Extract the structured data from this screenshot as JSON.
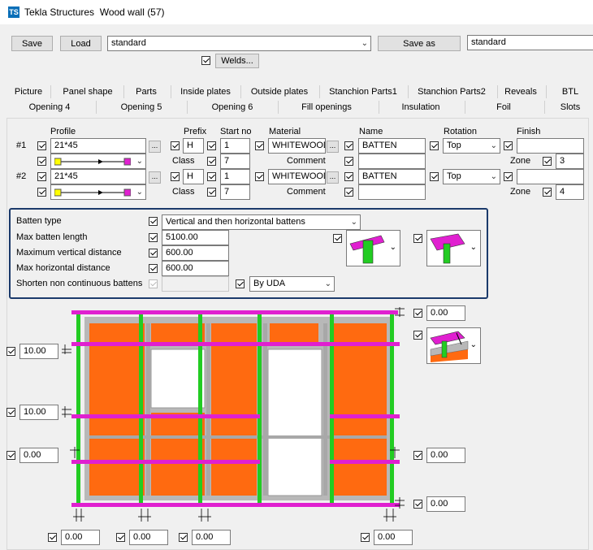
{
  "window": {
    "app": "Tekla Structures",
    "title": "Wood wall (57)"
  },
  "toolbar": {
    "save": "Save",
    "load": "Load",
    "settings": "standard",
    "save_as": "Save as",
    "save_as_name": "standard",
    "welds": "Welds..."
  },
  "tabs_row1": [
    "Picture",
    "Panel shape",
    "Parts",
    "Inside plates",
    "Outside plates",
    "Stanchion Parts1",
    "Stanchion Parts2",
    "Reveals",
    "BTL"
  ],
  "tabs_row2": [
    "Opening 4",
    "Opening 5",
    "Opening 6",
    "Fill openings",
    "Insulation",
    "Foil",
    "Slots"
  ],
  "headers": {
    "profile": "Profile",
    "prefix": "Prefix",
    "start_no": "Start no",
    "material": "Material",
    "name": "Name",
    "rotation": "Rotation",
    "finish": "Finish",
    "class": "Class",
    "comment": "Comment",
    "zone": "Zone"
  },
  "rows": [
    {
      "id": "#1",
      "profile": "21*45",
      "prefix": "H",
      "start_no": "1",
      "class": "7",
      "material": "WHITEWOOD",
      "name": "BATTEN",
      "rotation": "Top",
      "finish": "",
      "zone": "3"
    },
    {
      "id": "#2",
      "profile": "21*45",
      "prefix": "H",
      "start_no": "1",
      "class": "7",
      "material": "WHITEWOOD",
      "name": "BATTEN",
      "rotation": "Top",
      "finish": "",
      "zone": "4"
    }
  ],
  "batten": {
    "type_label": "Batten type",
    "type_value": "Vertical and then horizontal battens",
    "max_length_label": "Max batten length",
    "max_length": "5100.00",
    "max_vert_label": "Maximum vertical distance",
    "max_vert": "600.00",
    "max_horiz_label": "Max horizontal distance",
    "max_horiz": "600.00",
    "shorten_label": "Shorten non continuous battens",
    "uda": "By UDA"
  },
  "dims": {
    "top_right": "0.00",
    "left_upper": "10.00",
    "left_middle": "10.00",
    "left_lower": "0.00",
    "right_middle": "0.00",
    "bottom_right": "0.00",
    "bottom_1": "0.00",
    "bottom_2": "0.00",
    "bottom_3": "0.00",
    "bottom_4": "0.00"
  },
  "colors": {
    "batten_h": "#e020d0",
    "batten_v": "#22cc22",
    "panel": "#ff6a10",
    "frame": "#b8b8b8",
    "highlight_border": "#1b3a6b"
  }
}
